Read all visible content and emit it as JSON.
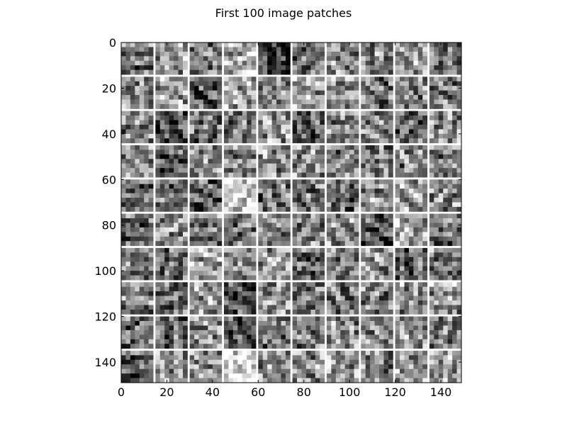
{
  "chart_data": {
    "type": "heatmap",
    "title": "First 100 image patches",
    "xlabel": "",
    "ylabel": "",
    "colormap": "gray",
    "grid": false,
    "xlim": [
      0,
      149
    ],
    "ylim": [
      149,
      0
    ],
    "xticks": [
      0,
      20,
      40,
      60,
      80,
      100,
      120,
      140
    ],
    "yticks": [
      0,
      20,
      40,
      60,
      80,
      100,
      120,
      140
    ],
    "patch_grid": {
      "rows": 10,
      "cols": 10,
      "patch_size": 14,
      "separator": 1,
      "separator_color": "#ffffff"
    },
    "patch_mean_brightness": [
      [
        0.45,
        0.6,
        0.5,
        0.7,
        0.2,
        0.45,
        0.55,
        0.5,
        0.6,
        0.45
      ],
      [
        0.5,
        0.6,
        0.35,
        0.65,
        0.45,
        0.6,
        0.55,
        0.45,
        0.5,
        0.45
      ],
      [
        0.5,
        0.35,
        0.4,
        0.45,
        0.6,
        0.35,
        0.55,
        0.5,
        0.4,
        0.55
      ],
      [
        0.55,
        0.35,
        0.55,
        0.55,
        0.55,
        0.55,
        0.5,
        0.5,
        0.5,
        0.5
      ],
      [
        0.45,
        0.45,
        0.35,
        0.8,
        0.45,
        0.45,
        0.4,
        0.55,
        0.6,
        0.55
      ],
      [
        0.4,
        0.55,
        0.5,
        0.45,
        0.5,
        0.55,
        0.6,
        0.35,
        0.65,
        0.45
      ],
      [
        0.45,
        0.45,
        0.65,
        0.55,
        0.6,
        0.4,
        0.5,
        0.55,
        0.4,
        0.5
      ],
      [
        0.5,
        0.4,
        0.55,
        0.3,
        0.55,
        0.45,
        0.45,
        0.5,
        0.55,
        0.6
      ],
      [
        0.45,
        0.45,
        0.55,
        0.3,
        0.45,
        0.45,
        0.55,
        0.55,
        0.55,
        0.5
      ],
      [
        0.4,
        0.6,
        0.55,
        0.9,
        0.55,
        0.55,
        0.6,
        0.5,
        0.55,
        0.6
      ]
    ]
  }
}
